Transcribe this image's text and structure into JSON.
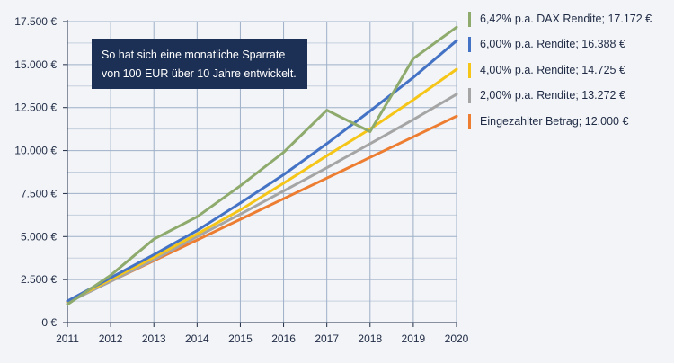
{
  "chart_data": {
    "type": "line",
    "annotation": [
      "So hat sich eine monatliche Sparrate",
      "von 100 EUR über 10 Jahre entwickelt."
    ],
    "x": [
      "2011",
      "2012",
      "2013",
      "2014",
      "2015",
      "2016",
      "2017",
      "2018",
      "2019",
      "2020"
    ],
    "y_ticks": [
      "0 €",
      "2.500 €",
      "5.000 €",
      "7.500 €",
      "10.000 €",
      "12.500 €",
      "15.000 €",
      "17.500 €"
    ],
    "ylim": [
      0,
      17500
    ],
    "grid": true,
    "legend_position": "right",
    "series": [
      {
        "name": "6,42% p.a. DAX Rendite; 17.172 €",
        "color": "#8eaa6c",
        "values": [
          1050,
          2750,
          4850,
          6150,
          7950,
          9900,
          12350,
          11100,
          15350,
          17172
        ]
      },
      {
        "name": "6,00% p.a. Rendite; 16.388 €",
        "color": "#4472c4",
        "values": [
          1250,
          2600,
          3950,
          5350,
          6950,
          8600,
          10400,
          12300,
          14250,
          16388
        ]
      },
      {
        "name": "4,00% p.a. Rendite; 14.725 €",
        "color": "#f5c518",
        "values": [
          1200,
          2500,
          3800,
          5150,
          6550,
          8100,
          9700,
          11250,
          12950,
          14725
        ]
      },
      {
        "name": "2,00% p.a. Rendite; 13.272 €",
        "color": "#a5a5a5",
        "values": [
          1150,
          2400,
          3650,
          5000,
          6300,
          7650,
          9000,
          10400,
          11800,
          13272
        ]
      },
      {
        "name": "Eingezahlter Betrag; 12.000 €",
        "color": "#ed7d31",
        "values": [
          1200,
          2400,
          3600,
          4800,
          6000,
          7200,
          8400,
          9600,
          10800,
          12000
        ]
      }
    ]
  }
}
